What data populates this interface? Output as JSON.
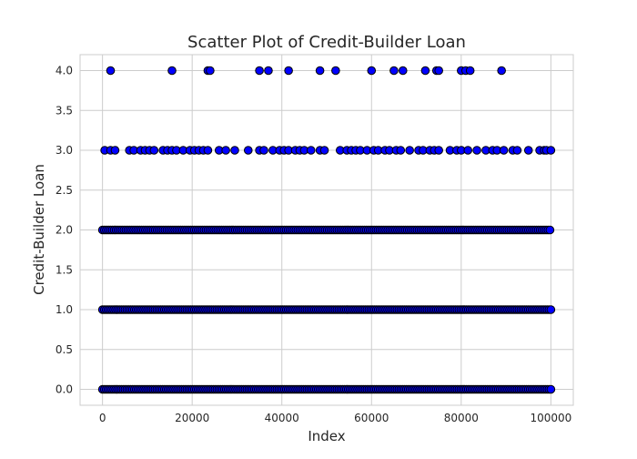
{
  "chart_data": {
    "type": "scatter",
    "title": "Scatter Plot of Credit-Builder Loan",
    "xlabel": "Index",
    "ylabel": "Credit-Builder Loan",
    "xlim": [
      -5000,
      105000
    ],
    "ylim": [
      -0.2,
      4.2
    ],
    "xticks": [
      0,
      20000,
      40000,
      60000,
      80000,
      100000
    ],
    "xtick_labels": [
      "0",
      "20000",
      "40000",
      "60000",
      "80000",
      "100000"
    ],
    "yticks": [
      0.0,
      0.5,
      1.0,
      1.5,
      2.0,
      2.5,
      3.0,
      3.5,
      4.0
    ],
    "ytick_labels": [
      "0.0",
      "0.5",
      "1.0",
      "1.5",
      "2.0",
      "2.5",
      "3.0",
      "3.5",
      "4.0"
    ],
    "grid": true,
    "marker_color": "#0000ff",
    "marker_edge_color": "#000000",
    "dense_series": [
      {
        "y": 0,
        "x_range": [
          0,
          100000
        ],
        "count": 240
      },
      {
        "y": 1,
        "x_range": [
          0,
          100000
        ],
        "count": 240
      },
      {
        "y": 2,
        "x_range": [
          0,
          99800
        ],
        "count": 230
      }
    ],
    "points": [
      {
        "x": 1800,
        "y": 4
      },
      {
        "x": 15500,
        "y": 4
      },
      {
        "x": 23500,
        "y": 4
      },
      {
        "x": 24000,
        "y": 4
      },
      {
        "x": 35000,
        "y": 4
      },
      {
        "x": 37000,
        "y": 4
      },
      {
        "x": 41500,
        "y": 4
      },
      {
        "x": 48500,
        "y": 4
      },
      {
        "x": 52000,
        "y": 4
      },
      {
        "x": 60000,
        "y": 4
      },
      {
        "x": 65000,
        "y": 4
      },
      {
        "x": 67000,
        "y": 4
      },
      {
        "x": 72000,
        "y": 4
      },
      {
        "x": 74500,
        "y": 4
      },
      {
        "x": 75000,
        "y": 4
      },
      {
        "x": 80000,
        "y": 4
      },
      {
        "x": 81000,
        "y": 4
      },
      {
        "x": 82000,
        "y": 4
      },
      {
        "x": 89000,
        "y": 4
      },
      {
        "x": 500,
        "y": 3
      },
      {
        "x": 1800,
        "y": 3
      },
      {
        "x": 2800,
        "y": 3
      },
      {
        "x": 6000,
        "y": 3
      },
      {
        "x": 7000,
        "y": 3
      },
      {
        "x": 8500,
        "y": 3
      },
      {
        "x": 9500,
        "y": 3
      },
      {
        "x": 10500,
        "y": 3
      },
      {
        "x": 11500,
        "y": 3
      },
      {
        "x": 13500,
        "y": 3
      },
      {
        "x": 14500,
        "y": 3
      },
      {
        "x": 15500,
        "y": 3
      },
      {
        "x": 16500,
        "y": 3
      },
      {
        "x": 18000,
        "y": 3
      },
      {
        "x": 19500,
        "y": 3
      },
      {
        "x": 20500,
        "y": 3
      },
      {
        "x": 21500,
        "y": 3
      },
      {
        "x": 22500,
        "y": 3
      },
      {
        "x": 23500,
        "y": 3
      },
      {
        "x": 26000,
        "y": 3
      },
      {
        "x": 27500,
        "y": 3
      },
      {
        "x": 29500,
        "y": 3
      },
      {
        "x": 32500,
        "y": 3
      },
      {
        "x": 35000,
        "y": 3
      },
      {
        "x": 36000,
        "y": 3
      },
      {
        "x": 38000,
        "y": 3
      },
      {
        "x": 39500,
        "y": 3
      },
      {
        "x": 40500,
        "y": 3
      },
      {
        "x": 41500,
        "y": 3
      },
      {
        "x": 43000,
        "y": 3
      },
      {
        "x": 44000,
        "y": 3
      },
      {
        "x": 45000,
        "y": 3
      },
      {
        "x": 46500,
        "y": 3
      },
      {
        "x": 48500,
        "y": 3
      },
      {
        "x": 49500,
        "y": 3
      },
      {
        "x": 53000,
        "y": 3
      },
      {
        "x": 54500,
        "y": 3
      },
      {
        "x": 55500,
        "y": 3
      },
      {
        "x": 56500,
        "y": 3
      },
      {
        "x": 57500,
        "y": 3
      },
      {
        "x": 59000,
        "y": 3
      },
      {
        "x": 60500,
        "y": 3
      },
      {
        "x": 61500,
        "y": 3
      },
      {
        "x": 63000,
        "y": 3
      },
      {
        "x": 64000,
        "y": 3
      },
      {
        "x": 65500,
        "y": 3
      },
      {
        "x": 66500,
        "y": 3
      },
      {
        "x": 68500,
        "y": 3
      },
      {
        "x": 70500,
        "y": 3
      },
      {
        "x": 71500,
        "y": 3
      },
      {
        "x": 73000,
        "y": 3
      },
      {
        "x": 74000,
        "y": 3
      },
      {
        "x": 75000,
        "y": 3
      },
      {
        "x": 77500,
        "y": 3
      },
      {
        "x": 79000,
        "y": 3
      },
      {
        "x": 80000,
        "y": 3
      },
      {
        "x": 81500,
        "y": 3
      },
      {
        "x": 83500,
        "y": 3
      },
      {
        "x": 85500,
        "y": 3
      },
      {
        "x": 87000,
        "y": 3
      },
      {
        "x": 88000,
        "y": 3
      },
      {
        "x": 89500,
        "y": 3
      },
      {
        "x": 91500,
        "y": 3
      },
      {
        "x": 92500,
        "y": 3
      },
      {
        "x": 95000,
        "y": 3
      },
      {
        "x": 97500,
        "y": 3
      },
      {
        "x": 98500,
        "y": 3
      },
      {
        "x": 99000,
        "y": 3
      },
      {
        "x": 100000,
        "y": 3
      }
    ]
  }
}
